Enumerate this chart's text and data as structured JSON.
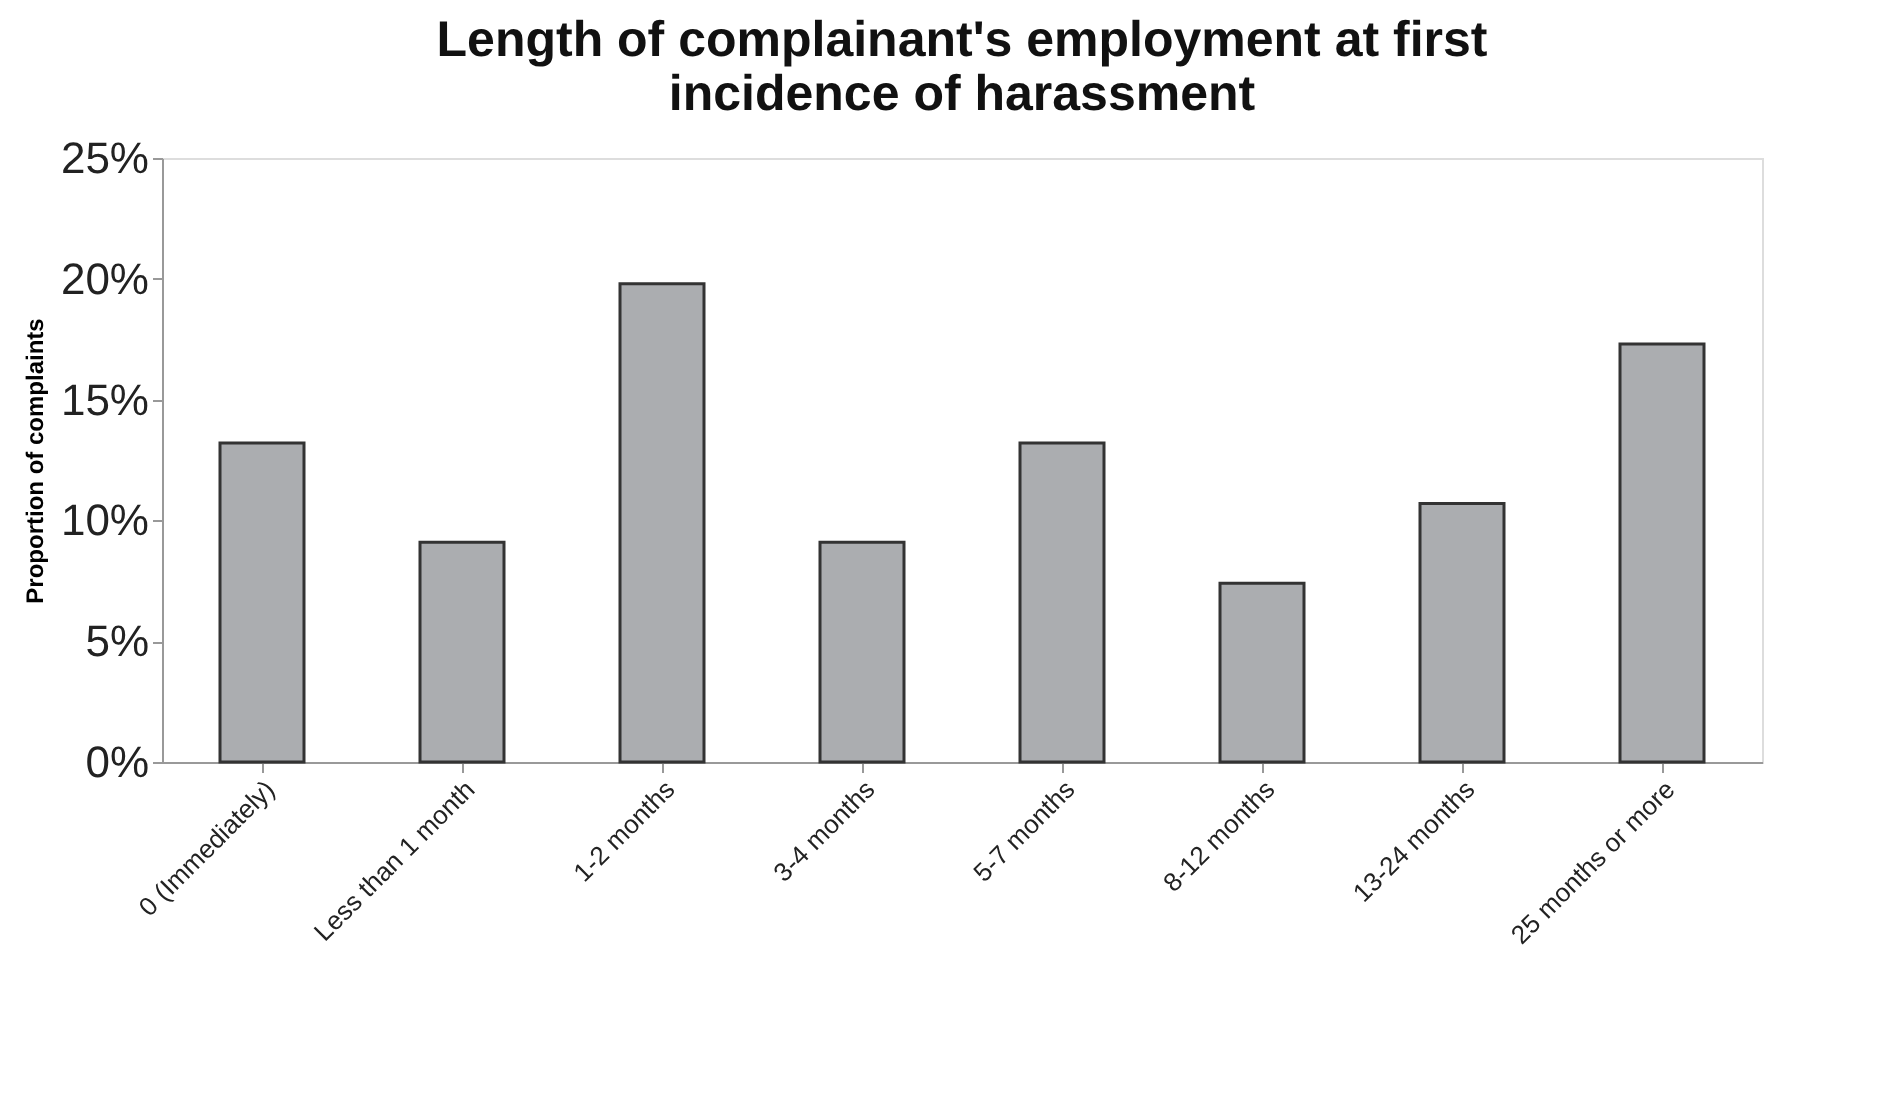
{
  "chart_data": {
    "type": "bar",
    "title": [
      "Length of complainant's employment at first",
      "incidence of harassment"
    ],
    "ylabel": "Proportion of complaints",
    "categories": [
      "0 (Immediately)",
      "Less than 1 month",
      "1-2 months",
      "3-4 months",
      "5-7 months",
      "8-12 months",
      "13-24 months",
      "25 months or more"
    ],
    "values": [
      13.2,
      9.1,
      19.8,
      9.1,
      13.2,
      7.4,
      10.7,
      17.3
    ],
    "color": "#abadb0",
    "ylim": [
      0,
      25
    ],
    "yticks": [
      {
        "value": 0,
        "label": "0%"
      },
      {
        "value": 5,
        "label": "5%"
      },
      {
        "value": 10,
        "label": "10%"
      },
      {
        "value": 15,
        "label": "15%"
      },
      {
        "value": 20,
        "label": "20%"
      },
      {
        "value": 25,
        "label": "25%"
      }
    ],
    "grid": false
  }
}
